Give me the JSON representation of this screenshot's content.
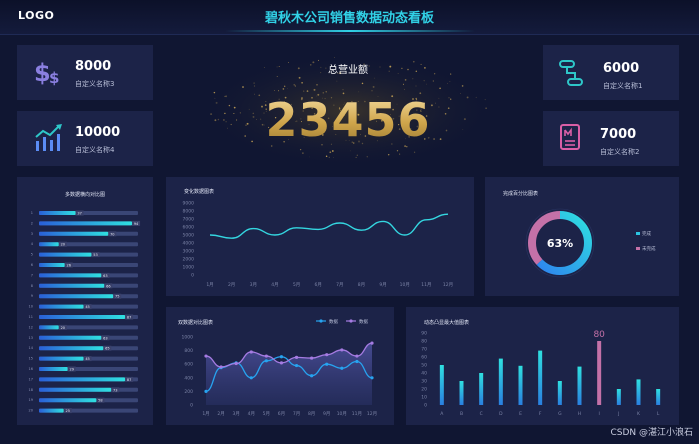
{
  "header": {
    "logo": "LOGO",
    "title": "碧秋木公司销售数据动态看板"
  },
  "stats": [
    {
      "value": "8000",
      "label": "自定义名称3",
      "icon": "dollar-icon",
      "color": "#8a7fe0"
    },
    {
      "value": "10000",
      "label": "自定义名称4",
      "icon": "trend-bars-icon",
      "color": "#5b8cf4"
    },
    {
      "value": "6000",
      "label": "自定义名称1",
      "icon": "flow-icon",
      "color": "#2ec7c9"
    },
    {
      "value": "7000",
      "label": "自定义名称2",
      "icon": "document-icon",
      "color": "#d95fa6"
    }
  ],
  "center": {
    "title": "总营业额",
    "value": "23456"
  },
  "progress_panel": {
    "title": "多数据横向对比图",
    "rows": [
      {
        "label": "1",
        "value": 37,
        "display": "37"
      },
      {
        "label": "2",
        "value": 94,
        "display": "94"
      },
      {
        "label": "3",
        "value": 70,
        "display": "70"
      },
      {
        "label": "4",
        "value": 20,
        "display": "20"
      },
      {
        "label": "5",
        "value": 53,
        "display": "53"
      },
      {
        "label": "6",
        "value": 26,
        "display": "26"
      },
      {
        "label": "7",
        "value": 63,
        "display": "63"
      },
      {
        "label": "8",
        "value": 66,
        "display": "66"
      },
      {
        "label": "9",
        "value": 75,
        "display": "75"
      },
      {
        "label": "10",
        "value": 45,
        "display": "45"
      },
      {
        "label": "11",
        "value": 87,
        "display": "87"
      },
      {
        "label": "12",
        "value": 20,
        "display": "20"
      },
      {
        "label": "13",
        "value": 63,
        "display": "63"
      },
      {
        "label": "14",
        "value": 65,
        "display": "65"
      },
      {
        "label": "15",
        "value": 45,
        "display": "45"
      },
      {
        "label": "16",
        "value": 29,
        "display": "29"
      },
      {
        "label": "17",
        "value": 87,
        "display": "87"
      },
      {
        "label": "18",
        "value": 73,
        "display": "73"
      },
      {
        "label": "19",
        "value": 58,
        "display": "58"
      },
      {
        "label": "20",
        "value": 25,
        "display": "25"
      }
    ]
  },
  "chart_data": [
    {
      "type": "line",
      "title": "变化数据图表",
      "categories": [
        "1月",
        "2月",
        "3月",
        "4月",
        "5月",
        "6月",
        "7月",
        "8月",
        "9月",
        "10月",
        "11月",
        "12月"
      ],
      "series": [
        {
          "values": [
            5000,
            4600,
            5800,
            5000,
            5900,
            5700,
            6500,
            5600,
            6700,
            5000,
            6900,
            7600
          ]
        }
      ],
      "yticks": [
        "9000",
        "8000",
        "7000",
        "6000",
        "5000",
        "4000",
        "3000",
        "2000",
        "1000",
        "0"
      ],
      "ylim": [
        0,
        9000
      ],
      "color": "#34d6e0"
    },
    {
      "type": "pie",
      "title": "完成百分比图表",
      "center_label": "63%",
      "slices": [
        {
          "name": "完成",
          "value": 63,
          "color": "#2bc4e0"
        },
        {
          "name": "未完成",
          "value": 37,
          "color": "#c471a8"
        }
      ]
    },
    {
      "type": "area",
      "title": "双数据对比图表",
      "categories": [
        "1月",
        "2月",
        "3月",
        "4月",
        "5月",
        "6月",
        "7月",
        "8月",
        "9月",
        "10月",
        "11月",
        "12月"
      ],
      "series": [
        {
          "name": "数据",
          "values": [
            200,
            550,
            620,
            400,
            650,
            710,
            580,
            430,
            600,
            540,
            640,
            400
          ],
          "color": "#27a3f0"
        },
        {
          "name": "数据",
          "values": [
            720,
            560,
            610,
            780,
            720,
            620,
            700,
            690,
            740,
            810,
            720,
            910
          ],
          "color": "#a57be2"
        }
      ],
      "yticks": [
        "1000",
        "800",
        "600",
        "400",
        "200",
        "0"
      ],
      "ylim": [
        0,
        1000
      ]
    },
    {
      "type": "bar",
      "title": "动态凸显最大值图表",
      "categories": [
        "A",
        "B",
        "C",
        "D",
        "E",
        "F",
        "G",
        "H",
        "I",
        "J",
        "K",
        "L"
      ],
      "values": [
        50,
        30,
        40,
        58,
        49,
        68,
        30,
        48,
        80,
        20,
        32,
        20
      ],
      "yticks": [
        "90",
        "80",
        "70",
        "60",
        "50",
        "40",
        "30",
        "20",
        "10",
        "0"
      ],
      "ylim": [
        0,
        90
      ],
      "max_label": "80",
      "color": "#2bc4e0",
      "max_color": "#c471a8"
    }
  ],
  "watermark": "CSDN @湛江小浪石"
}
